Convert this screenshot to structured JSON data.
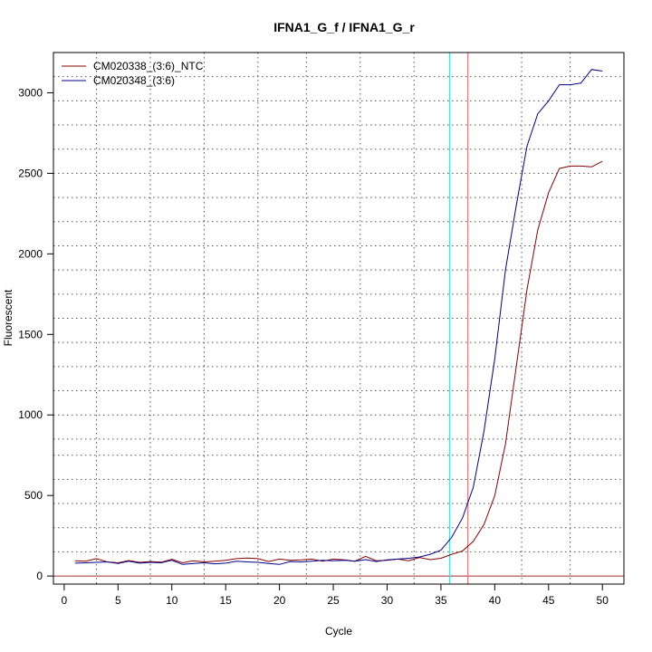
{
  "chart_data": {
    "type": "line",
    "title": "IFNA1_G_f / IFNA1_G_r",
    "xlabel": "Cycle",
    "ylabel": "Fluorescent",
    "xlim": [
      -1,
      52
    ],
    "ylim": [
      -50,
      3250
    ],
    "x_ticks": [
      0,
      5,
      10,
      15,
      20,
      25,
      30,
      35,
      40,
      45,
      50
    ],
    "y_ticks": [
      0,
      500,
      1000,
      1500,
      2000,
      2500,
      3000
    ],
    "x_ticklabels": [
      "0",
      "5",
      "10",
      "15",
      "20",
      "25",
      "30",
      "35",
      "40",
      "45",
      "50"
    ],
    "y_ticklabels": [
      "0",
      "500",
      "1000",
      "1500",
      "2000",
      "2500",
      "3000"
    ],
    "grid_x": [
      3,
      8,
      13,
      18,
      22.5,
      27.5,
      32.5,
      37.5,
      42.5,
      47
    ],
    "grid_y": [
      150,
      300,
      450,
      600,
      750,
      850,
      1000,
      1150,
      1300,
      1450,
      1600,
      1750,
      1900,
      2050,
      2200,
      2350,
      2500,
      2650,
      2800,
      2950,
      3100
    ],
    "grid": true,
    "legend_position": "top-left",
    "threshold_y": 0,
    "threshold_color": "#a52a2a",
    "vlines": [
      {
        "x": 35.8,
        "color": "#00ffff"
      },
      {
        "x": 37.5,
        "color": "#ff6f6f"
      }
    ],
    "x": [
      1,
      2,
      3,
      4,
      5,
      6,
      7,
      8,
      9,
      10,
      11,
      12,
      13,
      14,
      15,
      16,
      17,
      18,
      19,
      20,
      21,
      22,
      23,
      24,
      25,
      26,
      27,
      28,
      29,
      30,
      31,
      32,
      33,
      34,
      35,
      36,
      37,
      38,
      39,
      40,
      41,
      42,
      43,
      44,
      45,
      46,
      47,
      48,
      49,
      50
    ],
    "series": [
      {
        "name": "CM020338_(3:6)_NTC",
        "color": "#8b0000",
        "values": [
          95,
          92,
          108,
          88,
          82,
          96,
          85,
          90,
          86,
          104,
          82,
          95,
          88,
          92,
          98,
          108,
          112,
          108,
          90,
          105,
          98,
          100,
          105,
          92,
          105,
          100,
          92,
          122,
          95,
          98,
          105,
          95,
          115,
          102,
          110,
          135,
          155,
          215,
          320,
          500,
          820,
          1300,
          1780,
          2150,
          2380,
          2530,
          2545,
          2545,
          2540,
          2575
        ]
      },
      {
        "name": "CM020348_(3:6)",
        "color": "#00008b",
        "values": [
          80,
          82,
          85,
          88,
          78,
          92,
          80,
          85,
          82,
          98,
          72,
          78,
          82,
          76,
          80,
          92,
          88,
          85,
          78,
          72,
          90,
          88,
          92,
          98,
          95,
          98,
          92,
          102,
          90,
          100,
          105,
          110,
          118,
          135,
          160,
          240,
          360,
          550,
          900,
          1350,
          1900,
          2300,
          2670,
          2870,
          2950,
          3050,
          3050,
          3060,
          3145,
          3135
        ]
      }
    ]
  }
}
